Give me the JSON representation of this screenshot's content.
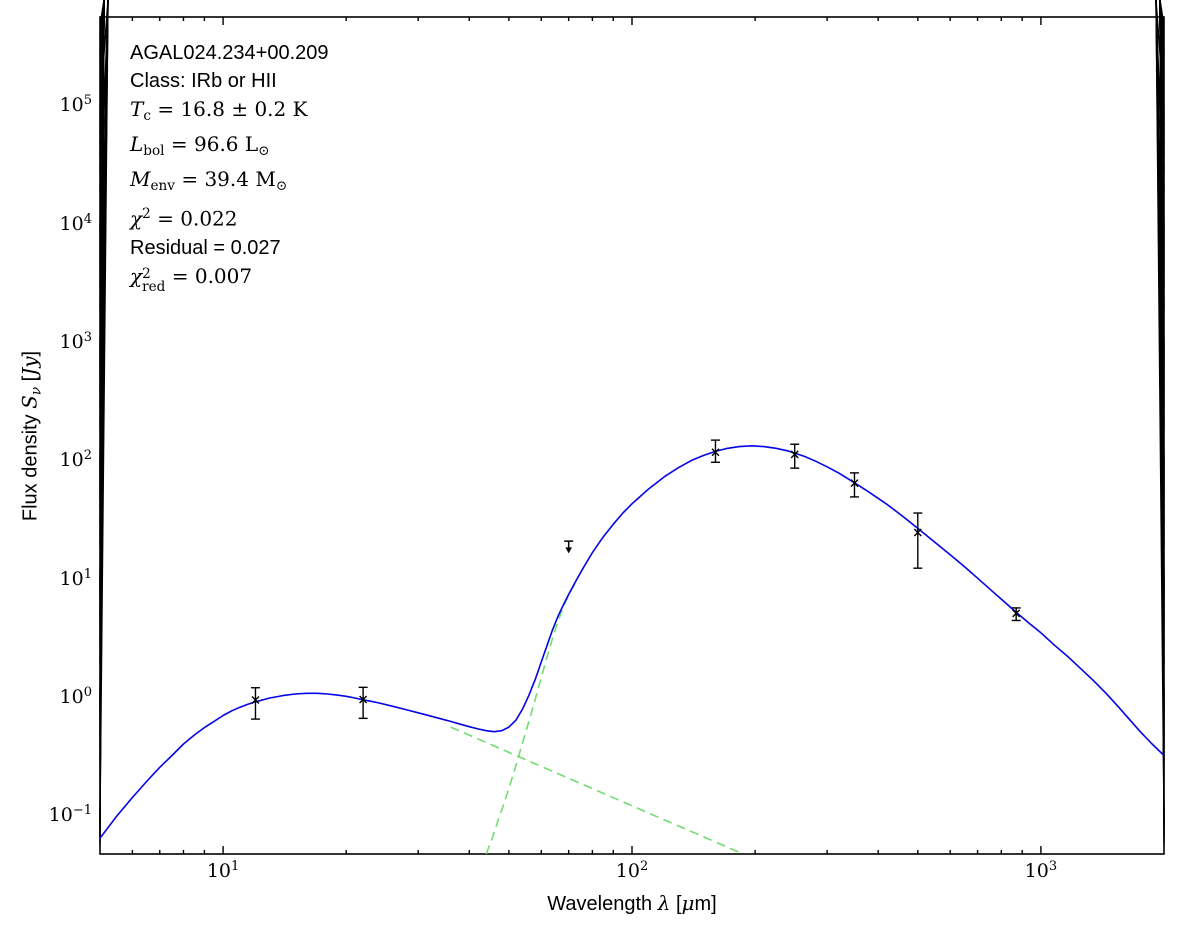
{
  "figure": {
    "background": "#ffffff",
    "annotation": {
      "lines": [
        {
          "name": "source-name",
          "segments": [
            {
              "t": "AGAL024.234+00.209",
              "s": "sans"
            }
          ]
        },
        {
          "name": "classification",
          "segments": [
            {
              "t": "Class: IRb or HII",
              "s": "sans"
            }
          ]
        },
        {
          "name": "dust-temperature",
          "segments": [
            {
              "t": "T",
              "s": "it"
            },
            {
              "t": "c",
              "s": "sub"
            },
            {
              "t": " = 16.8 ± 0.2 K",
              "s": "rm"
            }
          ]
        },
        {
          "name": "bolometric-luminosity",
          "segments": [
            {
              "t": "L",
              "s": "it"
            },
            {
              "t": "bol",
              "s": "sub"
            },
            {
              "t": " = 96.6 L",
              "s": "rm"
            },
            {
              "t": "⊙",
              "s": "sub"
            }
          ]
        },
        {
          "name": "envelope-mass",
          "segments": [
            {
              "t": "M",
              "s": "it"
            },
            {
              "t": "env",
              "s": "sub"
            },
            {
              "t": " = 39.4 M",
              "s": "rm"
            },
            {
              "t": "⊙",
              "s": "sub"
            }
          ]
        },
        {
          "name": "chi-squared",
          "segments": [
            {
              "t": "χ",
              "s": "it"
            },
            {
              "t": "2",
              "s": "sup"
            },
            {
              "t": " = 0.022",
              "s": "rm"
            }
          ]
        },
        {
          "name": "residual",
          "segments": [
            {
              "t": "Residual = 0.027",
              "s": "sans"
            }
          ]
        },
        {
          "name": "chi-squared-reduced",
          "segments": [
            {
              "t": "χ",
              "s": "it"
            },
            {
              "sup": "2",
              "sub": "red",
              "s": "stack"
            },
            {
              "t": " = 0.007",
              "s": "rm"
            }
          ]
        }
      ]
    },
    "xlabel_segments": [
      {
        "t": "Wavelength ",
        "s": "sans"
      },
      {
        "t": "λ",
        "s": "it"
      },
      {
        "t": " [",
        "s": "sans"
      },
      {
        "t": "μ",
        "s": "it"
      },
      {
        "t": "m]",
        "s": "sans"
      }
    ],
    "ylabel_segments": [
      {
        "t": "Flux density ",
        "s": "sans"
      },
      {
        "t": "S",
        "s": "it"
      },
      {
        "t": "ν",
        "s": "subit"
      },
      {
        "t": " [",
        "s": "sans"
      },
      {
        "t": "Jy",
        "s": "it"
      },
      {
        "t": "]",
        "s": "sans"
      }
    ]
  },
  "chart_data": {
    "type": "line",
    "title": "",
    "xlabel": "Wavelength λ [μm]",
    "ylabel": "Flux density Sν [Jy]",
    "x_scale": "log",
    "y_scale": "log",
    "xlim": [
      5,
      2000
    ],
    "ylim": [
      0.05,
      590000
    ],
    "grid": false,
    "legend": "none",
    "colors": {
      "total_fit": "#0404e8",
      "components": "#72dd72",
      "data": "#000000",
      "frame": "#000000"
    },
    "x_major_ticks": [
      {
        "value": 10,
        "base": "10",
        "exp": "1"
      },
      {
        "value": 100,
        "base": "10",
        "exp": "2"
      },
      {
        "value": 1000,
        "base": "10",
        "exp": "3"
      }
    ],
    "y_major_ticks": [
      {
        "value": 0.1,
        "base": "10",
        "exp": "−1"
      },
      {
        "value": 1,
        "base": "10",
        "exp": "0"
      },
      {
        "value": 10,
        "base": "10",
        "exp": "1"
      },
      {
        "value": 100,
        "base": "10",
        "exp": "2"
      },
      {
        "value": 1000,
        "base": "10",
        "exp": "3"
      },
      {
        "value": 10000,
        "base": "10",
        "exp": "4"
      },
      {
        "value": 100000,
        "base": "10",
        "exp": "5"
      }
    ],
    "series": [
      {
        "name": "warm-component",
        "style": "dashed",
        "color": "#72dd72",
        "points": [
          [
            36,
            0.59
          ],
          [
            40,
            0.505
          ],
          [
            45,
            0.423
          ],
          [
            50,
            0.361
          ],
          [
            56,
            0.305
          ],
          [
            63,
            0.2555
          ],
          [
            71,
            0.2135
          ],
          [
            80,
            0.1785
          ],
          [
            90,
            0.1496
          ],
          [
            100,
            0.1277
          ],
          [
            112,
            0.1077
          ],
          [
            126,
            0.0903
          ],
          [
            142,
            0.0755
          ],
          [
            160,
            0.0631
          ],
          [
            173,
            0.0561
          ],
          [
            186,
            0.0504
          ]
        ]
      },
      {
        "name": "cold-component",
        "style": "dashed",
        "color": "#72dd72",
        "points": [
          [
            44,
            0.05
          ],
          [
            45.5,
            0.068
          ],
          [
            47,
            0.095
          ],
          [
            48.5,
            0.13
          ],
          [
            50,
            0.18
          ],
          [
            51.5,
            0.25
          ],
          [
            53,
            0.35
          ],
          [
            55,
            0.54
          ],
          [
            57,
            0.82
          ],
          [
            59,
            1.25
          ],
          [
            61,
            1.9
          ],
          [
            63,
            2.8
          ],
          [
            65,
            4.0
          ],
          [
            67,
            5.4
          ],
          [
            69,
            6.9
          ],
          [
            71,
            8.5
          ],
          [
            73,
            10.0
          ]
        ]
      },
      {
        "name": "total-model",
        "style": "solid",
        "color": "#0404e8",
        "points": [
          [
            5,
            0.068
          ],
          [
            5.5,
            0.105
          ],
          [
            6,
            0.15
          ],
          [
            6.5,
            0.205
          ],
          [
            7,
            0.27
          ],
          [
            7.5,
            0.34
          ],
          [
            8,
            0.425
          ],
          [
            8.5,
            0.505
          ],
          [
            9,
            0.585
          ],
          [
            9.5,
            0.66
          ],
          [
            10,
            0.74
          ],
          [
            10.5,
            0.81
          ],
          [
            11,
            0.87
          ],
          [
            11.5,
            0.92
          ],
          [
            12,
            0.965
          ],
          [
            13,
            1.04
          ],
          [
            14,
            1.09
          ],
          [
            15,
            1.125
          ],
          [
            16,
            1.14
          ],
          [
            17,
            1.14
          ],
          [
            18,
            1.125
          ],
          [
            19,
            1.1
          ],
          [
            20,
            1.075
          ],
          [
            21,
            1.04
          ],
          [
            22,
            1.005
          ],
          [
            23,
            0.975
          ],
          [
            24,
            0.945
          ],
          [
            26,
            0.885
          ],
          [
            28,
            0.83
          ],
          [
            30,
            0.78
          ],
          [
            32,
            0.735
          ],
          [
            34,
            0.695
          ],
          [
            36,
            0.66
          ],
          [
            38,
            0.625
          ],
          [
            40,
            0.595
          ],
          [
            42,
            0.57
          ],
          [
            44,
            0.55
          ],
          [
            46,
            0.54
          ],
          [
            48,
            0.55
          ],
          [
            50,
            0.59
          ],
          [
            52,
            0.675
          ],
          [
            54,
            0.84
          ],
          [
            56,
            1.1
          ],
          [
            58,
            1.5
          ],
          [
            60,
            2.1
          ],
          [
            62,
            2.9
          ],
          [
            64,
            3.95
          ],
          [
            66,
            5.15
          ],
          [
            68,
            6.4
          ],
          [
            70,
            7.8
          ],
          [
            73,
            10.2
          ],
          [
            76,
            13.1
          ],
          [
            80,
            17.6
          ],
          [
            85,
            23.8
          ],
          [
            90,
            30.6
          ],
          [
            95,
            38
          ],
          [
            100,
            45.5
          ],
          [
            110,
            61
          ],
          [
            120,
            77
          ],
          [
            130,
            92
          ],
          [
            140,
            106
          ],
          [
            150,
            117
          ],
          [
            160,
            126
          ],
          [
            170,
            133
          ],
          [
            183,
            138.5
          ],
          [
            196,
            140.5
          ],
          [
            210,
            138.5
          ],
          [
            225,
            134
          ],
          [
            240,
            127.5
          ],
          [
            250,
            122
          ],
          [
            265,
            114
          ],
          [
            280,
            105
          ],
          [
            300,
            93.5
          ],
          [
            320,
            83
          ],
          [
            350,
            68.5
          ],
          [
            380,
            57
          ],
          [
            420,
            45
          ],
          [
            460,
            35.5
          ],
          [
            500,
            28.2
          ],
          [
            550,
            21.6
          ],
          [
            600,
            16.9
          ],
          [
            650,
            13.4
          ],
          [
            700,
            10.7
          ],
          [
            760,
            8.3
          ],
          [
            820,
            6.6
          ],
          [
            870,
            5.5
          ],
          [
            940,
            4.4
          ],
          [
            1000,
            3.7
          ],
          [
            1080,
            2.9
          ],
          [
            1160,
            2.35
          ],
          [
            1250,
            1.85
          ],
          [
            1350,
            1.44
          ],
          [
            1450,
            1.12
          ],
          [
            1550,
            0.87
          ],
          [
            1650,
            0.68
          ],
          [
            1750,
            0.54
          ],
          [
            1870,
            0.425
          ],
          [
            2000,
            0.34
          ]
        ]
      }
    ],
    "data_points": [
      {
        "lambda": 12,
        "flux": 1.0,
        "flux_hi": 1.27,
        "flux_lo": 0.69,
        "upper_limit": false
      },
      {
        "lambda": 22,
        "flux": 1.01,
        "flux_hi": 1.28,
        "flux_lo": 0.7,
        "upper_limit": false
      },
      {
        "lambda": 70,
        "flux": 20.5,
        "flux_hi": 22,
        "flux_lo": 17.5,
        "upper_limit": true
      },
      {
        "lambda": 160,
        "flux": 124,
        "flux_hi": 157,
        "flux_lo": 102,
        "upper_limit": false
      },
      {
        "lambda": 250,
        "flux": 119,
        "flux_hi": 145,
        "flux_lo": 91,
        "upper_limit": false
      },
      {
        "lambda": 350,
        "flux": 68,
        "flux_hi": 83,
        "flux_lo": 52,
        "upper_limit": false
      },
      {
        "lambda": 500,
        "flux": 26,
        "flux_hi": 38,
        "flux_lo": 13,
        "upper_limit": false
      },
      {
        "lambda": 870,
        "flux": 5.4,
        "flux_hi": 6.0,
        "flux_lo": 4.7,
        "upper_limit": false
      }
    ]
  }
}
